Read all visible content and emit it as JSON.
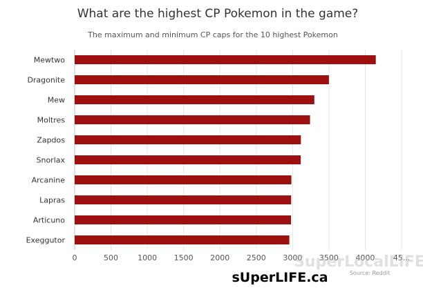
{
  "chart_data": {
    "type": "bar",
    "orientation": "horizontal",
    "title": "What are the highest CP Pokemon in the game?",
    "subtitle": "The maximum and minimum CP caps for the 10 highest Pokemon",
    "categories": [
      "Mewtwo",
      "Dragonite",
      "Mew",
      "Moltres",
      "Zapdos",
      "Snorlax",
      "Arcanine",
      "Lapras",
      "Articuno",
      "Exeggutor"
    ],
    "values": [
      4145,
      3500,
      3299,
      3240,
      3114,
      3112,
      2983,
      2980,
      2978,
      2955
    ],
    "xlim": [
      0,
      4500
    ],
    "xticks": [
      "0",
      "500",
      "1000",
      "1500",
      "2000",
      "2500",
      "3000",
      "3500",
      "4000",
      "45..."
    ],
    "grid": true,
    "bar_color": "#9e1010",
    "source": "Source: Reddit"
  },
  "watermark": {
    "text": "SuperLocalLIFE",
    "site": "sUperLIFE.ca"
  }
}
